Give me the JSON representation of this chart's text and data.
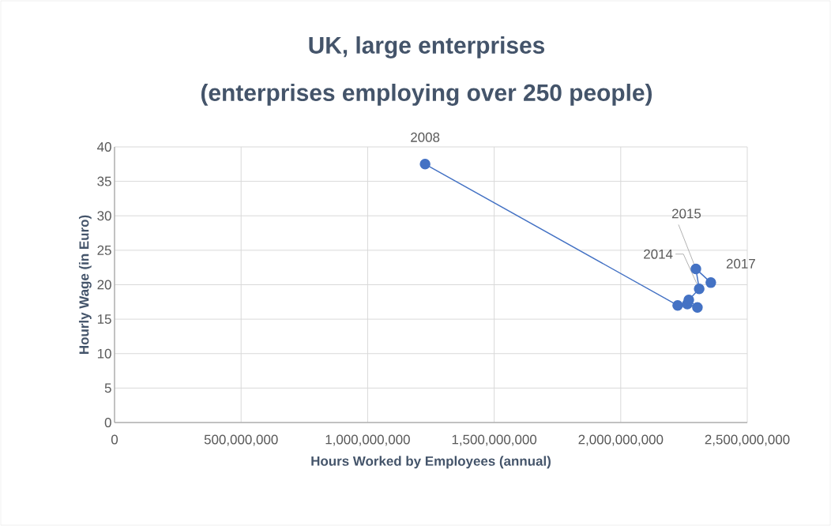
{
  "chart_data": {
    "type": "line",
    "title": "UK, large enterprises",
    "subtitle": "(enterprises employing over 250 people)",
    "xlabel": "Hours Worked by Employees (annual)",
    "ylabel": "Hourly Wage (in Euro)",
    "x": [
      1227000000,
      2225000000,
      2263000000,
      2303000000,
      2275000000,
      2269000000,
      2310000000,
      2297000000,
      2350000000,
      2356000000
    ],
    "series": [
      {
        "color": "#4472c4",
        "values": [
          37.5,
          17.0,
          17.2,
          16.7,
          null,
          17.8,
          19.4,
          22.3,
          null,
          20.3
        ]
      }
    ],
    "marker": "circle",
    "line_style": "solid",
    "grid": true,
    "xlim": [
      0,
      2500000000
    ],
    "ylim": [
      0,
      40
    ],
    "xticks": [
      0,
      {
        "value": 500000000,
        "label": "500,000,000"
      },
      {
        "value": 1000000000,
        "label": "1,000,000,000"
      },
      {
        "value": 1500000000,
        "label": "1,500,000,000"
      },
      {
        "value": 2000000000,
        "label": "2,000,000,000"
      },
      {
        "value": 2500000000,
        "label": "2,500,000,000"
      }
    ],
    "yticks": [
      0,
      5,
      10,
      15,
      20,
      25,
      30,
      35,
      40
    ],
    "annotations": [
      {
        "text": "2008",
        "x": 1227000000,
        "y": 37.5
      },
      {
        "text": "2014",
        "x": 2310000000,
        "y": 19.4
      },
      {
        "text": "2015",
        "x": 2297000000,
        "y": 22.3
      },
      {
        "text": "2017",
        "x": 2356000000,
        "y": 20.3
      }
    ]
  }
}
